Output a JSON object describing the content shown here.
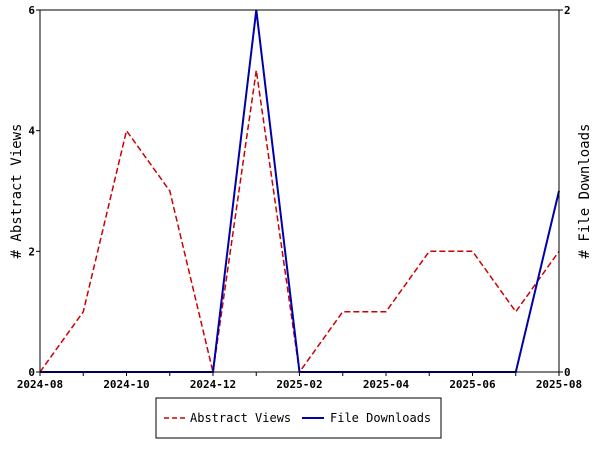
{
  "chart_data": {
    "type": "line",
    "title": "",
    "x": [
      "2024-08",
      "2024-09",
      "2024-10",
      "2024-11",
      "2024-12",
      "2025-01",
      "2025-02",
      "2025-03",
      "2025-04",
      "2025-05",
      "2025-06",
      "2025-07",
      "2025-08"
    ],
    "x_tick_labels": [
      "2024-08",
      "2024-10",
      "2024-12",
      "2025-02",
      "2025-04",
      "2025-06",
      "2025-08"
    ],
    "xlabel": "",
    "left_axis": {
      "label": "# Abstract Views",
      "ylim": [
        0,
        6
      ],
      "ticks": [
        0,
        2,
        4,
        6
      ]
    },
    "right_axis": {
      "label": "# File Downloads",
      "ylim": [
        0,
        2
      ],
      "ticks": [
        0,
        2
      ]
    },
    "series": [
      {
        "name": "Abstract Views",
        "axis": "left",
        "color": "#cc0000",
        "style": "dashed",
        "values": [
          0,
          1,
          4,
          3,
          0,
          5,
          0,
          1,
          1,
          2,
          2,
          1,
          2
        ]
      },
      {
        "name": "File Downloads",
        "axis": "right",
        "color": "#0000aa",
        "style": "solid",
        "values": [
          0,
          0,
          0,
          0,
          0,
          2,
          0,
          0,
          0,
          0,
          0,
          0,
          1
        ]
      }
    ],
    "grid": false,
    "legend_position": "bottom"
  }
}
